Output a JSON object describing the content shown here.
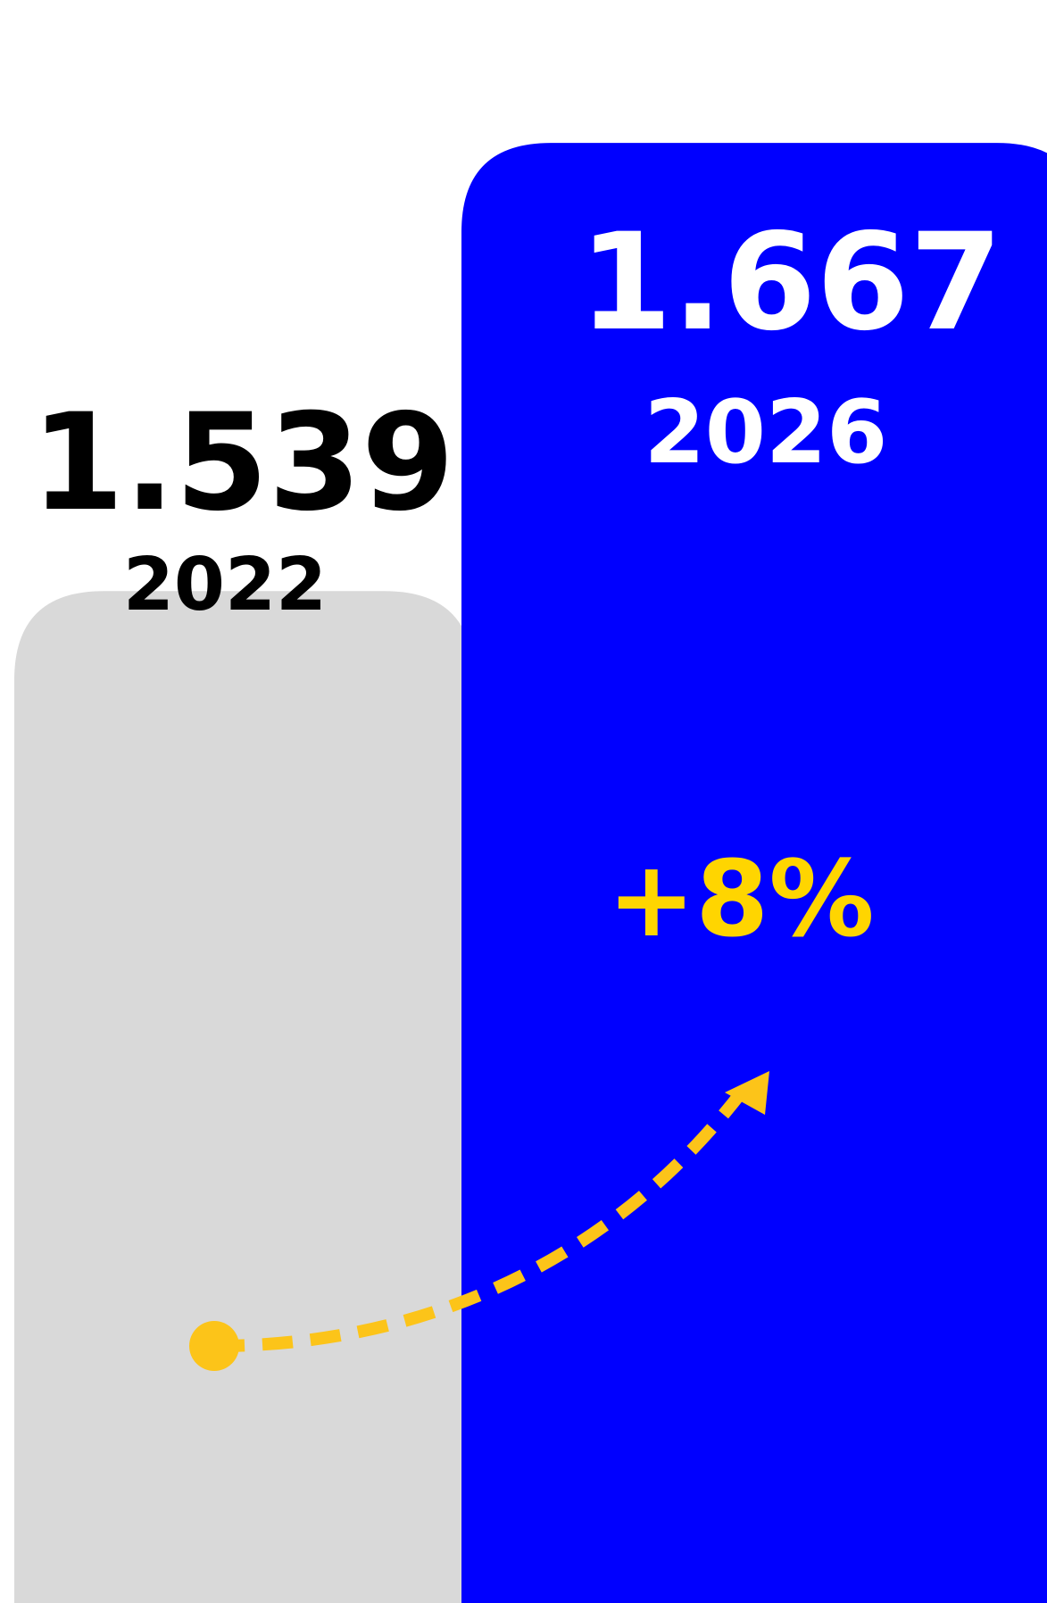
{
  "chart_data": {
    "type": "bar",
    "categories": [
      "2022",
      "2026"
    ],
    "values": [
      1539,
      1667
    ],
    "value_labels": [
      "1.539",
      "1.667"
    ],
    "change_label": "+8%",
    "bar_colors": [
      "#d9d9d9",
      "#0000ff"
    ],
    "value_text_colors": [
      "#000000",
      "#ffffff"
    ],
    "change_color": "#ffd500",
    "arrow_color": "#fcc419",
    "grid": false,
    "legend": "none"
  }
}
